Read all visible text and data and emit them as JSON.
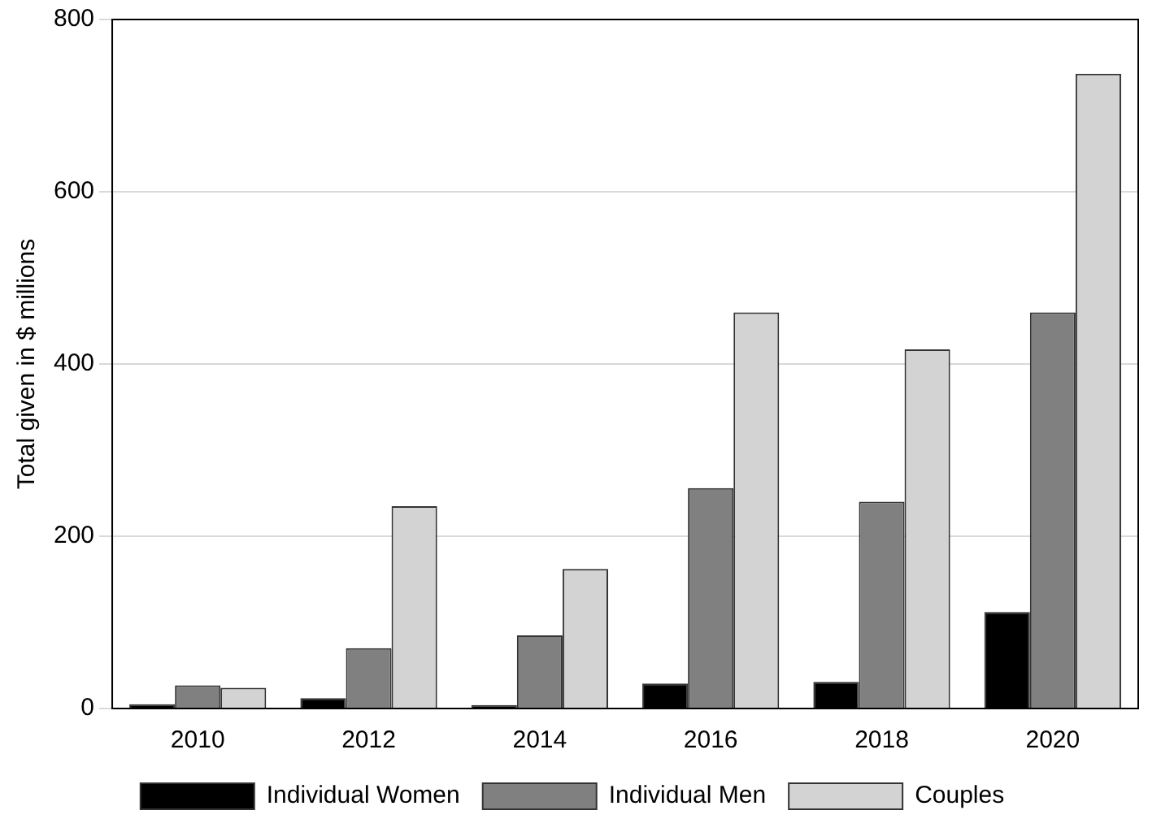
{
  "chart_data": {
    "type": "bar",
    "ylabel": "Total given in $ millions",
    "categories": [
      "2010",
      "2012",
      "2014",
      "2016",
      "2018",
      "2020"
    ],
    "series": [
      {
        "name": "Individual Women",
        "color": "#000000",
        "values": [
          5,
          12,
          4,
          29,
          31,
          112
        ]
      },
      {
        "name": "Individual Men",
        "color": "#808080",
        "values": [
          27,
          70,
          85,
          256,
          240,
          460
        ]
      },
      {
        "name": "Couples",
        "color": "#d3d3d3",
        "values": [
          24,
          235,
          162,
          460,
          417,
          737
        ]
      }
    ],
    "ylim": [
      0,
      800
    ],
    "yticks": [
      0,
      200,
      400,
      600,
      800
    ],
    "grid": "y",
    "legend": "bottom"
  }
}
